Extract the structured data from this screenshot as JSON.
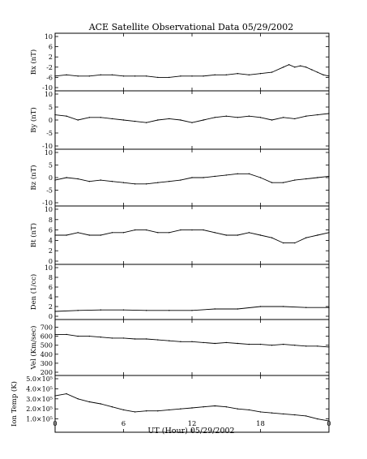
{
  "title": "ACE Satellite Observational Data   05/29/2002",
  "xlabel": "UT (Hour)   05/29/2002",
  "x_ticks": [
    "0",
    "6",
    "12",
    "18",
    "0"
  ],
  "x_tick_hours": [
    0,
    6,
    12,
    18,
    24
  ],
  "chart_data": [
    {
      "type": "line",
      "ylabel": "Bx (nT)",
      "ylim": [
        -10,
        10
      ],
      "y_ticks": [
        10,
        6,
        2,
        -2,
        -6,
        -10
      ],
      "y_tick_labels": [
        "10",
        "6",
        "2",
        "-2",
        "-6",
        "-10"
      ],
      "x": [
        0,
        1,
        2,
        3,
        4,
        5,
        6,
        7,
        8,
        9,
        10,
        11,
        12,
        13,
        14,
        15,
        16,
        17,
        18,
        19,
        20,
        20.5,
        21,
        21.5,
        22,
        22.5,
        23,
        23.5,
        24
      ],
      "y": [
        -5.5,
        -5,
        -5.5,
        -5.5,
        -5,
        -5,
        -5.5,
        -5.5,
        -5.5,
        -6,
        -6,
        -5.5,
        -5.5,
        -5.5,
        -5,
        -5,
        -4.5,
        -5,
        -4.5,
        -4,
        -2,
        -1,
        -2,
        -1.5,
        -2,
        -3,
        -4,
        -5,
        -5.5
      ]
    },
    {
      "type": "line",
      "ylabel": "By (nT)",
      "ylim": [
        -10,
        10
      ],
      "y_ticks": [
        10,
        5,
        0,
        -5,
        -10
      ],
      "y_tick_labels": [
        "10",
        "5",
        "0",
        "-5",
        "-10"
      ],
      "x": [
        0,
        1,
        2,
        3,
        4,
        5,
        6,
        7,
        8,
        9,
        10,
        11,
        12,
        13,
        14,
        15,
        16,
        17,
        18,
        19,
        20,
        21,
        22,
        23,
        24
      ],
      "y": [
        2,
        1.5,
        0,
        1,
        1,
        0.5,
        0,
        -0.5,
        -1,
        0,
        0.5,
        0,
        -1,
        0,
        1,
        1.5,
        1,
        1.5,
        1,
        0,
        1,
        0.5,
        1.5,
        2,
        2.5
      ]
    },
    {
      "type": "line",
      "ylabel": "Bz (nT)",
      "ylim": [
        -10,
        10
      ],
      "y_ticks": [
        10,
        5,
        0,
        -5,
        -10
      ],
      "y_tick_labels": [
        "10",
        "5",
        "0",
        "-5",
        "-10"
      ],
      "x": [
        0,
        1,
        2,
        3,
        4,
        5,
        6,
        7,
        8,
        9,
        10,
        11,
        12,
        13,
        14,
        15,
        16,
        17,
        18,
        19,
        20,
        21,
        22,
        23,
        24
      ],
      "y": [
        -1,
        0,
        -0.5,
        -1.5,
        -1,
        -1.5,
        -2,
        -2.5,
        -2.5,
        -2,
        -1.5,
        -1,
        0,
        0,
        0.5,
        1,
        1.5,
        1.5,
        0,
        -2,
        -2,
        -1,
        -0.5,
        0,
        0.5
      ]
    },
    {
      "type": "line",
      "ylabel": "Bt (nT)",
      "ylim": [
        0,
        10
      ],
      "y_ticks": [
        10,
        8,
        6,
        4,
        2,
        0
      ],
      "y_tick_labels": [
        "10",
        "8",
        "6",
        "4",
        "2",
        "0"
      ],
      "x": [
        0,
        1,
        2,
        3,
        4,
        5,
        6,
        7,
        8,
        9,
        10,
        11,
        12,
        13,
        14,
        15,
        16,
        17,
        18,
        19,
        20,
        21,
        22,
        23,
        24
      ],
      "y": [
        5,
        5,
        5.5,
        5,
        5,
        5.5,
        5.5,
        6,
        6,
        5.5,
        5.5,
        6,
        6,
        6,
        5.5,
        5,
        5,
        5.5,
        5,
        4.5,
        3.5,
        3.5,
        4.5,
        5,
        5.5
      ]
    },
    {
      "type": "line",
      "ylabel": "Den (1/cc)",
      "ylim": [
        0,
        10
      ],
      "y_ticks": [
        10,
        8,
        6,
        4,
        2,
        0
      ],
      "y_tick_labels": [
        "10",
        "8",
        "6",
        "4",
        "2",
        "0"
      ],
      "x": [
        0,
        2,
        4,
        6,
        8,
        10,
        12,
        14,
        16,
        18,
        20,
        22,
        24
      ],
      "y": [
        1,
        1.2,
        1.3,
        1.3,
        1.2,
        1.2,
        1.2,
        1.5,
        1.5,
        2,
        2,
        1.8,
        1.8
      ]
    },
    {
      "type": "line",
      "ylabel": "Vel (Km/sec)",
      "ylim": [
        200,
        750
      ],
      "y_ticks": [
        700,
        600,
        500,
        400,
        300,
        200
      ],
      "y_tick_labels": [
        "700",
        "600",
        "500",
        "400",
        "300",
        "200"
      ],
      "x": [
        0,
        1,
        2,
        3,
        4,
        5,
        6,
        7,
        8,
        9,
        10,
        11,
        12,
        13,
        14,
        15,
        16,
        17,
        18,
        19,
        20,
        21,
        22,
        23,
        24
      ],
      "y": [
        620,
        620,
        600,
        600,
        590,
        580,
        580,
        570,
        570,
        560,
        550,
        540,
        540,
        530,
        520,
        530,
        520,
        510,
        510,
        500,
        510,
        500,
        490,
        490,
        480
      ]
    },
    {
      "type": "line",
      "ylabel": "Ion Temp (K)",
      "ylim": [
        0,
        500000
      ],
      "y_ticks": [
        500000,
        400000,
        300000,
        200000,
        100000
      ],
      "y_tick_labels": [
        "5.0×10⁵",
        "4.0×10⁵",
        "3.0×10⁵",
        "2.0×10⁵",
        "1.0×10⁵"
      ],
      "x": [
        0,
        1,
        2,
        3,
        4,
        5,
        6,
        7,
        8,
        9,
        10,
        11,
        12,
        13,
        14,
        15,
        16,
        17,
        18,
        19,
        20,
        21,
        22,
        23,
        24
      ],
      "y": [
        330000,
        350000,
        300000,
        270000,
        250000,
        220000,
        190000,
        170000,
        180000,
        180000,
        190000,
        200000,
        210000,
        220000,
        230000,
        220000,
        200000,
        190000,
        170000,
        160000,
        150000,
        140000,
        130000,
        100000,
        80000
      ]
    }
  ]
}
